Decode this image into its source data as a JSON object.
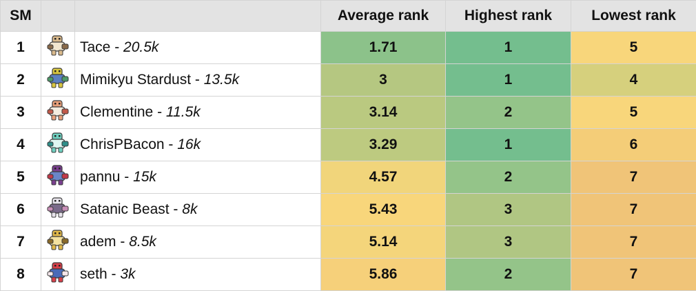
{
  "headers": {
    "sm": "SM",
    "image": "",
    "name": "",
    "avg": "Average rank",
    "high": "Highest rank",
    "low": "Lowest rank"
  },
  "colors": {
    "green_dark": "#74be8e",
    "green_mid": "#8cc28a",
    "green_light": "#b9c97f",
    "olive": "#d7d17c",
    "yellow": "#f8d67b",
    "yellow_orange": "#f4cc78",
    "orange": "#f0c478"
  },
  "rows": [
    {
      "sm": "1",
      "name": "Tace",
      "sep": " - ",
      "score": "20.5k",
      "avg": "1.71",
      "high": "1",
      "low": "5",
      "avg_color": "#8cc28a",
      "high_color": "#74be8e",
      "low_color": "#f8d67b",
      "sprite": {
        "icon": "tace-sprite-icon",
        "c1": "#d9b98c",
        "c2": "#8a6a4a",
        "c3": "#f2e6cf"
      }
    },
    {
      "sm": "2",
      "name": "Mimikyu Stardust",
      "sep": " - ",
      "score": "13.5k",
      "avg": "3",
      "high": "1",
      "low": "4",
      "avg_color": "#b5c781",
      "high_color": "#74be8e",
      "low_color": "#d6d07d",
      "sprite": {
        "icon": "mimikyu-stardust-sprite-icon",
        "c1": "#d8c640",
        "c2": "#4f9a6a",
        "c3": "#5b7fc1"
      }
    },
    {
      "sm": "3",
      "name": "Clementine",
      "sep": " - ",
      "score": "11.5k",
      "avg": "3.14",
      "high": "2",
      "low": "5",
      "avg_color": "#bac980",
      "high_color": "#94c489",
      "low_color": "#f8d67b",
      "sprite": {
        "icon": "clementine-sprite-icon",
        "c1": "#e8a07a",
        "c2": "#c25a4a",
        "c3": "#f4ecdf"
      }
    },
    {
      "sm": "4",
      "name": "ChrisPBacon",
      "sep": " - ",
      "score": "16k",
      "avg": "3.29",
      "high": "1",
      "low": "6",
      "avg_color": "#bdca80",
      "high_color": "#74be8e",
      "low_color": "#f4cd78",
      "sprite": {
        "icon": "chrispbacon-sprite-icon",
        "c1": "#6fd0c0",
        "c2": "#2f8f8a",
        "c3": "#dff7f2"
      }
    },
    {
      "sm": "5",
      "name": "pannu",
      "sep": " - ",
      "score": "15k",
      "avg": "4.57",
      "high": "2",
      "low": "7",
      "avg_color": "#f1d57b",
      "high_color": "#94c489",
      "low_color": "#f0c478",
      "sprite": {
        "icon": "pannu-sprite-icon",
        "c1": "#7a3f8f",
        "c2": "#c23a4a",
        "c3": "#6a86c8"
      }
    },
    {
      "sm": "6",
      "name": "Satanic Beast",
      "sep": " - ",
      "score": "8k",
      "avg": "5.43",
      "high": "3",
      "low": "7",
      "avg_color": "#f8d67b",
      "high_color": "#b0c683",
      "low_color": "#f0c478",
      "sprite": {
        "icon": "satanic-beast-sprite-icon",
        "c1": "#e8e4ec",
        "c2": "#c98fb8",
        "c3": "#7a6a8a"
      }
    },
    {
      "sm": "7",
      "name": "adem",
      "sep": " - ",
      "score": "8.5k",
      "avg": "5.14",
      "high": "3",
      "low": "7",
      "avg_color": "#f4d57b",
      "high_color": "#b0c683",
      "low_color": "#f0c478",
      "sprite": {
        "icon": "adem-sprite-icon",
        "c1": "#e0b84a",
        "c2": "#8a6a2a",
        "c3": "#f4e2a0"
      }
    },
    {
      "sm": "8",
      "name": "seth",
      "sep": " - ",
      "score": "3k",
      "avg": "5.86",
      "high": "2",
      "low": "7",
      "avg_color": "#f6d07a",
      "high_color": "#94c489",
      "low_color": "#f0c478",
      "sprite": {
        "icon": "seth-sprite-icon",
        "c1": "#d8404a",
        "c2": "#f4e6ea",
        "c3": "#4a6ab8"
      }
    }
  ]
}
